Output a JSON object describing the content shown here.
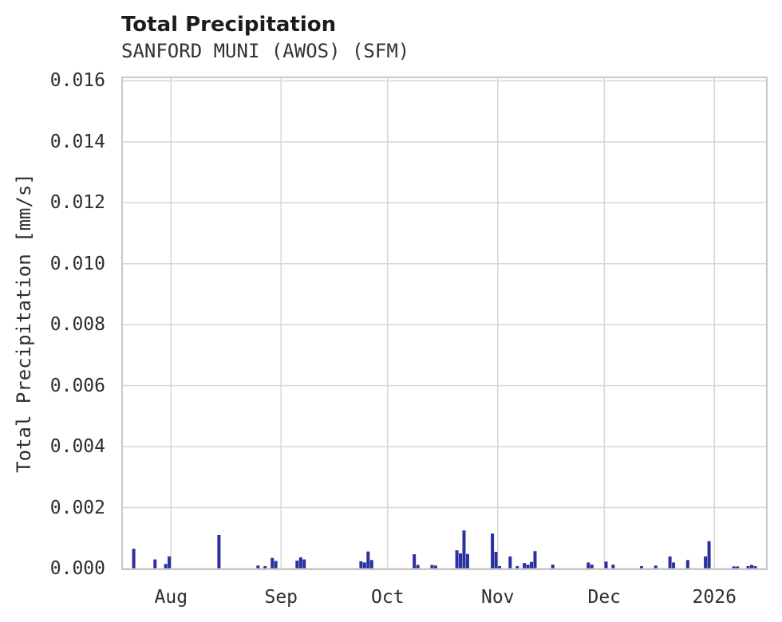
{
  "header": {
    "title": "Total Precipitation",
    "subtitle": "SANFORD MUNI (AWOS) (SFM)"
  },
  "colors": {
    "bar": "#2b309f",
    "grid": "#d6d6d6",
    "spine": "#c8c8c8",
    "background": "#ffffff",
    "title_text": "#1c1c1c",
    "tick_text": "#2e2e2e"
  },
  "chart_data": {
    "type": "bar",
    "title": "Total Precipitation",
    "subtitle": "SANFORD MUNI (AWOS) (SFM)",
    "xlabel": "",
    "ylabel": "Total Precipitation [mm/s]",
    "ylim": [
      0,
      0.016
    ],
    "grid": true,
    "legend": "none",
    "ytick_labels": [
      "0.000",
      "0.002",
      "0.004",
      "0.006",
      "0.008",
      "0.010",
      "0.012",
      "0.014",
      "0.016"
    ],
    "yticks": [
      0.0,
      0.002,
      0.004,
      0.006,
      0.008,
      0.01,
      0.012,
      0.014,
      0.016
    ],
    "x_domain": [
      "2025-07-18",
      "2026-01-16"
    ],
    "xticks": [
      {
        "date": "2025-08-01",
        "label": "Aug"
      },
      {
        "date": "2025-09-01",
        "label": "Sep"
      },
      {
        "date": "2025-10-01",
        "label": "Oct"
      },
      {
        "date": "2025-11-01",
        "label": "Nov"
      },
      {
        "date": "2025-12-01",
        "label": "Dec"
      },
      {
        "date": "2026-01-01",
        "label": "2026"
      }
    ],
    "bars": [
      {
        "date": "2025-07-21",
        "value": 0.00065
      },
      {
        "date": "2025-07-27",
        "value": 0.0003
      },
      {
        "date": "2025-07-30",
        "value": 0.00015
      },
      {
        "date": "2025-07-31",
        "value": 0.0004
      },
      {
        "date": "2025-08-14",
        "value": 0.0011
      },
      {
        "date": "2025-08-25",
        "value": 0.0001
      },
      {
        "date": "2025-08-27",
        "value": 8e-05
      },
      {
        "date": "2025-08-29",
        "value": 0.00035
      },
      {
        "date": "2025-08-30",
        "value": 0.00025
      },
      {
        "date": "2025-09-05",
        "value": 0.00026
      },
      {
        "date": "2025-09-06",
        "value": 0.00037
      },
      {
        "date": "2025-09-07",
        "value": 0.0003
      },
      {
        "date": "2025-09-23",
        "value": 0.00024
      },
      {
        "date": "2025-09-24",
        "value": 0.0002
      },
      {
        "date": "2025-09-25",
        "value": 0.00056
      },
      {
        "date": "2025-09-26",
        "value": 0.00028
      },
      {
        "date": "2025-10-08",
        "value": 0.00047
      },
      {
        "date": "2025-10-09",
        "value": 0.00012
      },
      {
        "date": "2025-10-13",
        "value": 0.00012
      },
      {
        "date": "2025-10-14",
        "value": 0.0001
      },
      {
        "date": "2025-10-20",
        "value": 0.0006
      },
      {
        "date": "2025-10-21",
        "value": 0.0005
      },
      {
        "date": "2025-10-22",
        "value": 0.00125
      },
      {
        "date": "2025-10-23",
        "value": 0.00048
      },
      {
        "date": "2025-10-30",
        "value": 0.00115
      },
      {
        "date": "2025-10-31",
        "value": 0.00055
      },
      {
        "date": "2025-11-01",
        "value": 8e-05
      },
      {
        "date": "2025-11-04",
        "value": 0.0004
      },
      {
        "date": "2025-11-06",
        "value": 8e-05
      },
      {
        "date": "2025-11-08",
        "value": 0.00018
      },
      {
        "date": "2025-11-09",
        "value": 0.00013
      },
      {
        "date": "2025-11-10",
        "value": 0.00022
      },
      {
        "date": "2025-11-11",
        "value": 0.00057
      },
      {
        "date": "2025-11-16",
        "value": 0.00013
      },
      {
        "date": "2025-11-26",
        "value": 0.0002
      },
      {
        "date": "2025-11-27",
        "value": 0.00013
      },
      {
        "date": "2025-12-01",
        "value": 0.00023
      },
      {
        "date": "2025-12-03",
        "value": 0.00013
      },
      {
        "date": "2025-12-11",
        "value": 8e-05
      },
      {
        "date": "2025-12-15",
        "value": 0.0001
      },
      {
        "date": "2025-12-19",
        "value": 0.0004
      },
      {
        "date": "2025-12-20",
        "value": 0.0002
      },
      {
        "date": "2025-12-24",
        "value": 0.00028
      },
      {
        "date": "2025-12-29",
        "value": 0.0004
      },
      {
        "date": "2025-12-30",
        "value": 0.0009
      },
      {
        "date": "2026-01-06",
        "value": 7e-05
      },
      {
        "date": "2026-01-07",
        "value": 7e-05
      },
      {
        "date": "2026-01-10",
        "value": 8e-05
      },
      {
        "date": "2026-01-11",
        "value": 0.00012
      },
      {
        "date": "2026-01-12",
        "value": 8e-05
      }
    ]
  }
}
